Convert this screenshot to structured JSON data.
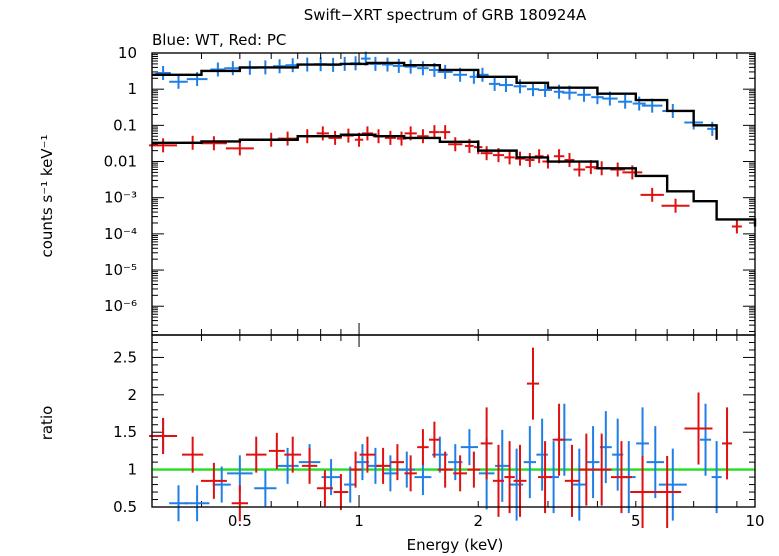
{
  "title": "Swift−XRT spectrum of GRB 180924A",
  "subtitle": "Blue: WT, Red: PC",
  "colors": {
    "wt": "#1f7fe6",
    "pc": "#e01010",
    "model": "#000000",
    "unity": "#22dd22"
  },
  "chart_data": [
    {
      "type": "scatter",
      "title": "Swift−XRT spectrum of GRB 180924A",
      "subtitle": "Blue: WT, Red: PC",
      "xlabel": "Energy (keV)",
      "ylabel": "counts s⁻¹ keV⁻¹",
      "xscale": "log",
      "yscale": "log",
      "xlim": [
        0.3,
        10
      ],
      "ylim": [
        1.6e-07,
        10
      ],
      "ytick_labels": [
        "10",
        "1",
        "0.1",
        "0.01",
        "10⁻³",
        "10⁻⁴",
        "10⁻⁵",
        "10⁻⁶"
      ],
      "ytick_values": [
        10,
        1,
        0.1,
        0.01,
        0.001,
        0.0001,
        1e-05,
        1e-06
      ],
      "series": [
        {
          "name": "Blue: WT",
          "color": "#1f7fe6",
          "points": [
            [
              0.32,
              2.8
            ],
            [
              0.35,
              1.6
            ],
            [
              0.39,
              1.9
            ],
            [
              0.44,
              3.5
            ],
            [
              0.48,
              3.8
            ],
            [
              0.53,
              3.9
            ],
            [
              0.58,
              4.0
            ],
            [
              0.63,
              4.3
            ],
            [
              0.68,
              4.6
            ],
            [
              0.74,
              4.8
            ],
            [
              0.8,
              4.9
            ],
            [
              0.86,
              4.7
            ],
            [
              0.92,
              5.0
            ],
            [
              0.98,
              5.2
            ],
            [
              1.04,
              7.0
            ],
            [
              1.1,
              5.0
            ],
            [
              1.18,
              4.8
            ],
            [
              1.26,
              4.4
            ],
            [
              1.35,
              4.2
            ],
            [
              1.45,
              3.8
            ],
            [
              1.55,
              3.4
            ],
            [
              1.65,
              3.0
            ],
            [
              1.8,
              2.5
            ],
            [
              1.95,
              2.2
            ],
            [
              2.05,
              2.5
            ],
            [
              2.2,
              1.4
            ],
            [
              2.35,
              1.3
            ],
            [
              2.55,
              1.2
            ],
            [
              2.75,
              1.0
            ],
            [
              2.95,
              0.95
            ],
            [
              3.2,
              0.85
            ],
            [
              3.4,
              0.8
            ],
            [
              3.7,
              0.7
            ],
            [
              4.0,
              0.6
            ],
            [
              4.3,
              0.55
            ],
            [
              4.7,
              0.45
            ],
            [
              5.1,
              0.4
            ],
            [
              5.5,
              0.35
            ],
            [
              6.2,
              0.25
            ],
            [
              7.0,
              0.12
            ],
            [
              7.8,
              0.08
            ]
          ],
          "model": [
            [
              0.3,
              2.5
            ],
            [
              0.4,
              3.2
            ],
            [
              0.5,
              4.0
            ],
            [
              0.7,
              4.8
            ],
            [
              0.9,
              5.0
            ],
            [
              1.05,
              5.3
            ],
            [
              1.3,
              4.6
            ],
            [
              1.6,
              3.4
            ],
            [
              2.0,
              2.2
            ],
            [
              2.5,
              1.5
            ],
            [
              3.0,
              1.1
            ],
            [
              4.0,
              0.75
            ],
            [
              5.0,
              0.5
            ],
            [
              6.0,
              0.25
            ],
            [
              7.0,
              0.1
            ],
            [
              8.0,
              0.04
            ]
          ]
        },
        {
          "name": "Red: PC",
          "color": "#e01010",
          "points": [
            [
              0.32,
              0.028
            ],
            [
              0.38,
              0.033
            ],
            [
              0.43,
              0.032
            ],
            [
              0.5,
              0.023
            ],
            [
              0.6,
              0.04
            ],
            [
              0.66,
              0.043
            ],
            [
              0.74,
              0.05
            ],
            [
              0.81,
              0.06
            ],
            [
              0.87,
              0.045
            ],
            [
              0.94,
              0.052
            ],
            [
              1.0,
              0.04
            ],
            [
              1.05,
              0.06
            ],
            [
              1.12,
              0.05
            ],
            [
              1.2,
              0.045
            ],
            [
              1.28,
              0.043
            ],
            [
              1.35,
              0.06
            ],
            [
              1.45,
              0.05
            ],
            [
              1.55,
              0.065
            ],
            [
              1.65,
              0.065
            ],
            [
              1.75,
              0.03
            ],
            [
              1.9,
              0.027
            ],
            [
              2.0,
              0.025
            ],
            [
              2.1,
              0.017
            ],
            [
              2.25,
              0.015
            ],
            [
              2.4,
              0.013
            ],
            [
              2.55,
              0.012
            ],
            [
              2.7,
              0.011
            ],
            [
              2.85,
              0.014
            ],
            [
              3.0,
              0.01
            ],
            [
              3.2,
              0.014
            ],
            [
              3.4,
              0.011
            ],
            [
              3.6,
              0.006
            ],
            [
              3.85,
              0.007
            ],
            [
              4.1,
              0.0065
            ],
            [
              4.5,
              0.006
            ],
            [
              4.9,
              0.005
            ],
            [
              5.5,
              0.0012
            ],
            [
              6.3,
              0.0006
            ],
            [
              9.0,
              0.00016
            ]
          ],
          "model": [
            [
              0.3,
              0.033
            ],
            [
              0.4,
              0.036
            ],
            [
              0.5,
              0.04
            ],
            [
              0.7,
              0.05
            ],
            [
              0.9,
              0.055
            ],
            [
              1.1,
              0.05
            ],
            [
              1.3,
              0.045
            ],
            [
              1.6,
              0.035
            ],
            [
              2.0,
              0.02
            ],
            [
              2.5,
              0.013
            ],
            [
              3.0,
              0.01
            ],
            [
              4.0,
              0.0065
            ],
            [
              5.0,
              0.004
            ],
            [
              6.0,
              0.0015
            ],
            [
              7.0,
              0.0008
            ],
            [
              8.0,
              0.00025
            ],
            [
              10.0,
              0.00016
            ]
          ]
        }
      ]
    },
    {
      "type": "scatter",
      "xlabel": "Energy (keV)",
      "ylabel": "ratio",
      "xscale": "log",
      "xlim": [
        0.3,
        10
      ],
      "ylim": [
        0.5,
        2.8
      ],
      "reference_line": 1,
      "xtick_labels": [
        "0.5",
        "1",
        "2",
        "5",
        "10"
      ],
      "xtick_values": [
        0.5,
        1,
        2,
        5,
        10
      ],
      "ytick_labels": [
        "0.5",
        "1",
        "1.5",
        "2",
        "2.5"
      ],
      "ytick_values": [
        0.5,
        1,
        1.5,
        2,
        2.5
      ],
      "series": [
        {
          "name": "Blue: WT",
          "color": "#1f7fe6",
          "points": [
            [
              0.32,
              1.45
            ],
            [
              0.35,
              0.55
            ],
            [
              0.39,
              0.55
            ],
            [
              0.45,
              0.8
            ],
            [
              0.5,
              0.95
            ],
            [
              0.58,
              0.75
            ],
            [
              0.66,
              1.05
            ],
            [
              0.75,
              1.1
            ],
            [
              0.85,
              0.9
            ],
            [
              0.95,
              0.8
            ],
            [
              1.02,
              1.1
            ],
            [
              1.1,
              1.05
            ],
            [
              1.2,
              0.95
            ],
            [
              1.32,
              1.0
            ],
            [
              1.45,
              0.9
            ],
            [
              1.6,
              1.2
            ],
            [
              1.75,
              1.1
            ],
            [
              1.9,
              1.3
            ],
            [
              2.1,
              0.95
            ],
            [
              2.3,
              1.05
            ],
            [
              2.5,
              0.8
            ],
            [
              2.7,
              1.1
            ],
            [
              2.9,
              1.2
            ],
            [
              3.1,
              0.9
            ],
            [
              3.3,
              1.4
            ],
            [
              3.6,
              0.8
            ],
            [
              3.9,
              1.1
            ],
            [
              4.2,
              1.3
            ],
            [
              4.5,
              1.2
            ],
            [
              4.8,
              0.9
            ],
            [
              5.2,
              1.35
            ],
            [
              5.6,
              1.1
            ],
            [
              6.2,
              0.8
            ],
            [
              7.5,
              1.4
            ],
            [
              8.0,
              0.9
            ]
          ]
        },
        {
          "name": "Red: PC",
          "color": "#e01010",
          "points": [
            [
              0.32,
              1.45
            ],
            [
              0.38,
              1.2
            ],
            [
              0.43,
              0.85
            ],
            [
              0.5,
              0.55
            ],
            [
              0.55,
              1.2
            ],
            [
              0.62,
              1.25
            ],
            [
              0.68,
              1.2
            ],
            [
              0.75,
              1.05
            ],
            [
              0.82,
              0.75
            ],
            [
              0.9,
              0.7
            ],
            [
              0.98,
              1.0
            ],
            [
              1.05,
              1.2
            ],
            [
              1.15,
              1.05
            ],
            [
              1.25,
              1.1
            ],
            [
              1.35,
              0.95
            ],
            [
              1.45,
              1.3
            ],
            [
              1.55,
              1.4
            ],
            [
              1.65,
              1.0
            ],
            [
              1.8,
              0.95
            ],
            [
              1.95,
              1.0
            ],
            [
              2.1,
              1.35
            ],
            [
              2.25,
              0.85
            ],
            [
              2.4,
              0.9
            ],
            [
              2.55,
              0.85
            ],
            [
              2.75,
              2.15
            ],
            [
              2.95,
              0.9
            ],
            [
              3.2,
              1.4
            ],
            [
              3.45,
              0.85
            ],
            [
              3.75,
              1.0
            ],
            [
              4.1,
              1.0
            ],
            [
              4.6,
              0.9
            ],
            [
              5.2,
              0.7
            ],
            [
              6.0,
              0.7
            ],
            [
              7.2,
              1.55
            ],
            [
              8.5,
              1.35
            ]
          ]
        }
      ]
    }
  ]
}
